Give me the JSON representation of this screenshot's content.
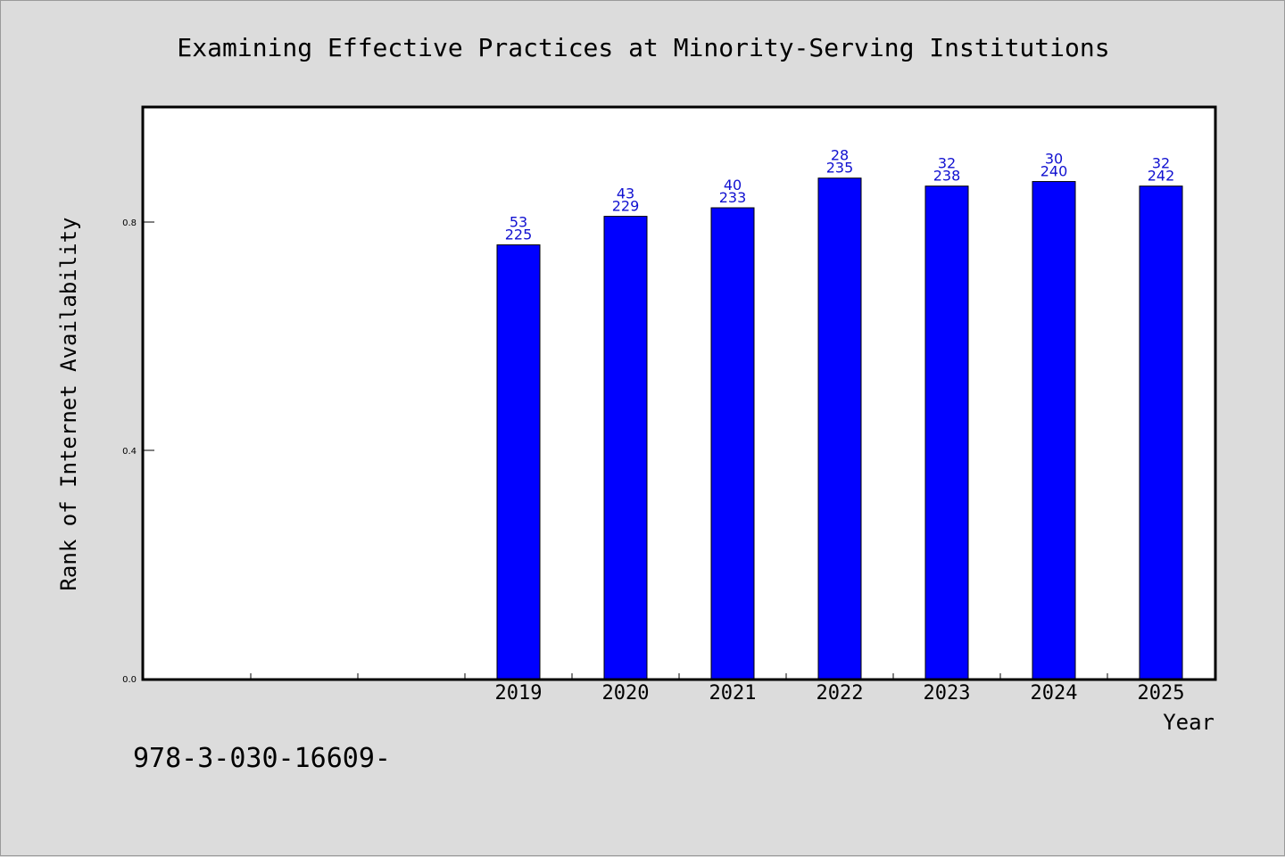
{
  "footer_text": "978-3-030-16609-",
  "chart_data": {
    "type": "bar",
    "title": "Examining Effective Practices at Minority-Serving Institutions",
    "xlabel": "Year",
    "ylabel": "Rank of Internet Availability",
    "categories": [
      "",
      "",
      "",
      "2019",
      "2020",
      "2021",
      "2022",
      "2023",
      "2024",
      "2025"
    ],
    "values": [
      null,
      null,
      null,
      0.76,
      0.81,
      0.825,
      0.877,
      0.863,
      0.871,
      0.863
    ],
    "labels_top": [
      "",
      "",
      "",
      "53",
      "43",
      "40",
      "28",
      "32",
      "30",
      "32"
    ],
    "labels_bottom": [
      "",
      "",
      "",
      "225",
      "229",
      "233",
      "235",
      "238",
      "240",
      "242"
    ],
    "ylim": [
      0,
      1.0
    ],
    "yticks": [
      0.0,
      0.4,
      0.8
    ],
    "ytick_labels": [
      "0.0",
      "0.4",
      "0.8"
    ],
    "grid": false,
    "legend": "none",
    "bar_color": "#0000ff",
    "label_color": "#1010d0"
  }
}
